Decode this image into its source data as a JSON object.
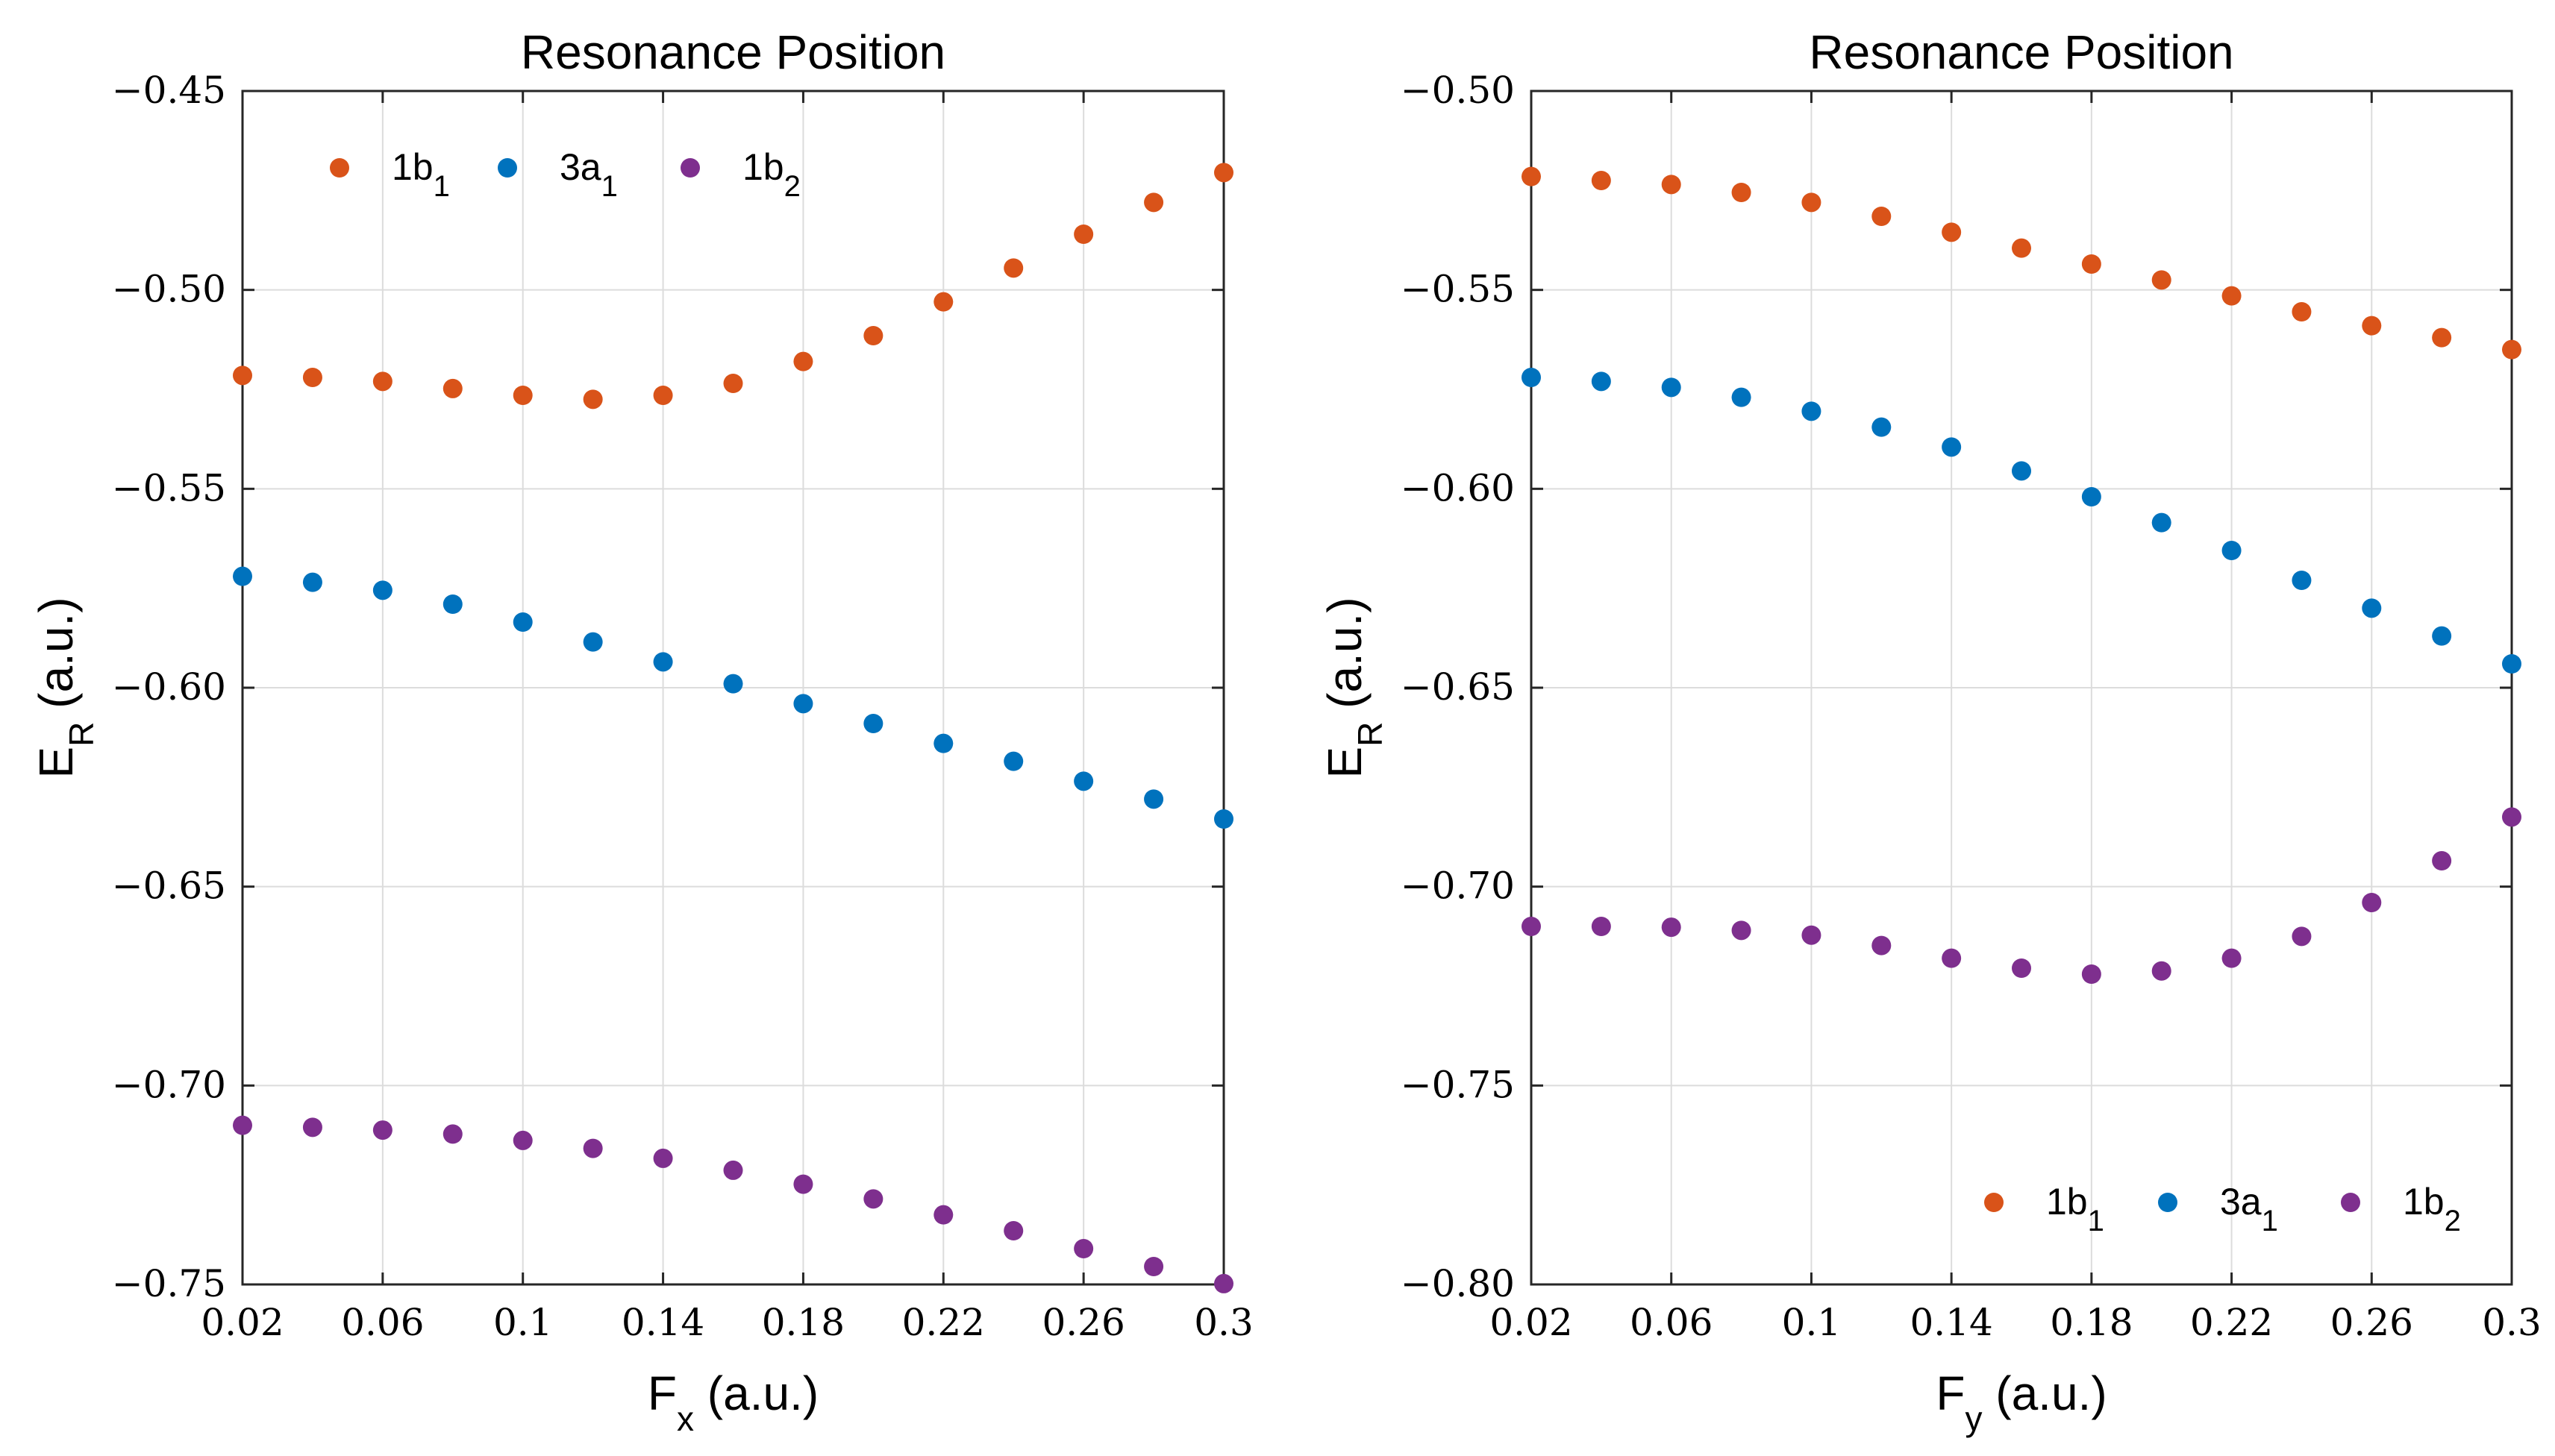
{
  "chart_data": [
    {
      "type": "scatter",
      "title": "Resonance Position",
      "xlabel": {
        "main": "F",
        "sub": "x",
        "unit": "(a.u.)"
      },
      "ylabel": {
        "main": "E",
        "sub": "R",
        "unit": "(a.u.)"
      },
      "xlim": [
        0.02,
        0.3
      ],
      "ylim": [
        -0.75,
        -0.45
      ],
      "grid": true,
      "xticks": [
        0.02,
        0.06,
        0.1,
        0.14,
        0.18,
        0.22,
        0.26,
        0.3
      ],
      "xtick_labels": [
        "0.02",
        "0.06",
        "0.1",
        "0.14",
        "0.18",
        "0.22",
        "0.26",
        "0.3"
      ],
      "yticks": [
        -0.75,
        -0.7,
        -0.65,
        -0.6,
        -0.55,
        -0.5,
        -0.45
      ],
      "ytick_labels": [
        "−0.75",
        "−0.70",
        "−0.65",
        "−0.60",
        "−0.55",
        "−0.50",
        "−0.45"
      ],
      "legend_position": "top-left",
      "x": [
        0.02,
        0.04,
        0.06,
        0.08,
        0.1,
        0.12,
        0.14,
        0.16,
        0.18,
        0.2,
        0.22,
        0.24,
        0.26,
        0.28,
        0.3
      ],
      "series": [
        {
          "name": "1b",
          "sub": "1",
          "color": "#d95319",
          "values": [
            -0.5215,
            -0.522,
            -0.523,
            -0.5248,
            -0.5265,
            -0.5275,
            -0.5265,
            -0.5235,
            -0.518,
            -0.5115,
            -0.503,
            -0.4945,
            -0.486,
            -0.478,
            -0.4705
          ]
        },
        {
          "name": "3a",
          "sub": "1",
          "color": "#0072bd",
          "values": [
            -0.572,
            -0.5735,
            -0.5755,
            -0.579,
            -0.5835,
            -0.5885,
            -0.5935,
            -0.599,
            -0.604,
            -0.609,
            -0.614,
            -0.6185,
            -0.6235,
            -0.628,
            -0.633
          ]
        },
        {
          "name": "1b",
          "sub": "2",
          "color": "#7e2f8e",
          "values": [
            -0.71,
            -0.7105,
            -0.7112,
            -0.7122,
            -0.7138,
            -0.7158,
            -0.7183,
            -0.7213,
            -0.7248,
            -0.7285,
            -0.7325,
            -0.7365,
            -0.741,
            -0.7455,
            -0.7498
          ]
        }
      ]
    },
    {
      "type": "scatter",
      "title": "Resonance Position",
      "xlabel": {
        "main": "F",
        "sub": "y",
        "unit": "(a.u.)"
      },
      "ylabel": {
        "main": "E",
        "sub": "R",
        "unit": "(a.u.)"
      },
      "xlim": [
        0.02,
        0.3
      ],
      "ylim": [
        -0.8,
        -0.5
      ],
      "grid": true,
      "xticks": [
        0.02,
        0.06,
        0.1,
        0.14,
        0.18,
        0.22,
        0.26,
        0.3
      ],
      "xtick_labels": [
        "0.02",
        "0.06",
        "0.1",
        "0.14",
        "0.18",
        "0.22",
        "0.26",
        "0.3"
      ],
      "yticks": [
        -0.8,
        -0.75,
        -0.7,
        -0.65,
        -0.6,
        -0.55,
        -0.5
      ],
      "ytick_labels": [
        "−0.80",
        "−0.75",
        "−0.70",
        "−0.65",
        "−0.60",
        "−0.55",
        "−0.50"
      ],
      "legend_position": "bottom-right",
      "x": [
        0.02,
        0.04,
        0.06,
        0.08,
        0.1,
        0.12,
        0.14,
        0.16,
        0.18,
        0.2,
        0.22,
        0.24,
        0.26,
        0.28,
        0.3
      ],
      "series": [
        {
          "name": "1b",
          "sub": "1",
          "color": "#d95319",
          "values": [
            -0.5215,
            -0.5225,
            -0.5235,
            -0.5255,
            -0.528,
            -0.5315,
            -0.5355,
            -0.5395,
            -0.5435,
            -0.5475,
            -0.5515,
            -0.5555,
            -0.559,
            -0.562,
            -0.565
          ]
        },
        {
          "name": "3a",
          "sub": "1",
          "color": "#0072bd",
          "values": [
            -0.572,
            -0.573,
            -0.5745,
            -0.577,
            -0.5805,
            -0.5845,
            -0.5895,
            -0.5955,
            -0.602,
            -0.6085,
            -0.6155,
            -0.623,
            -0.63,
            -0.637,
            -0.644
          ]
        },
        {
          "name": "1b",
          "sub": "2",
          "color": "#7e2f8e",
          "values": [
            -0.71,
            -0.71,
            -0.7102,
            -0.711,
            -0.7122,
            -0.7148,
            -0.718,
            -0.7205,
            -0.722,
            -0.7212,
            -0.718,
            -0.7125,
            -0.704,
            -0.6935,
            -0.6825
          ]
        }
      ]
    }
  ]
}
